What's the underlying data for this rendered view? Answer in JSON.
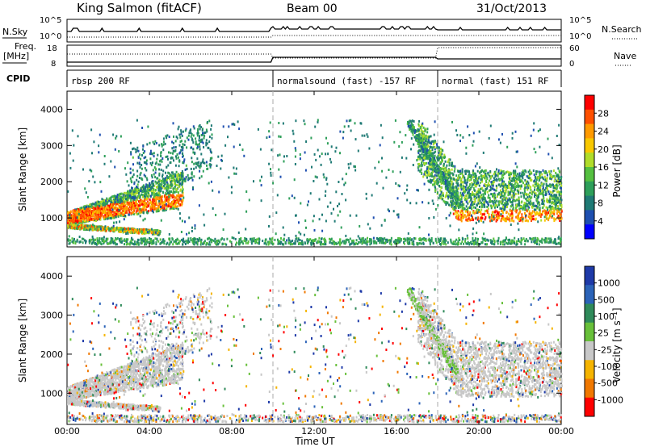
{
  "header": {
    "station": "King Salmon (fitACF)",
    "beam": "Beam 00",
    "date": "31/Oct/2013"
  },
  "top_panels": {
    "nsky_label": "N.Sky",
    "nsky_ticks": [
      "10^5",
      "10^0"
    ],
    "nsearch_label": "N.Search",
    "nsearch_ticks": [
      "10^5",
      "10^0"
    ],
    "freq_label": "Freq.",
    "freq_unit": "[MHz]",
    "freq_ticks": [
      "18",
      "8"
    ],
    "nave_label": "Nave",
    "nave_ticks": [
      "60",
      "0"
    ],
    "cpid_label": "CPID",
    "cpid_segments": [
      {
        "label": "rbsp 200 RF",
        "start": 0,
        "end": 10
      },
      {
        "label": "normalsound (fast) -157 RF",
        "start": 10,
        "end": 18
      },
      {
        "label": "normal (fast) 151 RF",
        "start": 18,
        "end": 24
      }
    ]
  },
  "chart_data": [
    {
      "type": "heatmap",
      "title": "",
      "ylabel": "Slant Range [km]",
      "xlabel": "",
      "x_range_hours": [
        0,
        24
      ],
      "ylim": [
        200,
        4500
      ],
      "y_ticks": [
        "1000",
        "2000",
        "3000",
        "4000"
      ],
      "colorbar": {
        "label": "Power [dB]",
        "ticks": [
          "28",
          "24",
          "20",
          "16",
          "12",
          "8",
          "4"
        ],
        "colors": [
          "#ff0000",
          "#ff5000",
          "#ff9a00",
          "#f8c800",
          "#b0dc2a",
          "#55c040",
          "#2e9f5a",
          "#1f7a75",
          "#1e4fb0",
          "#0000ff"
        ]
      }
    },
    {
      "type": "heatmap",
      "title": "",
      "ylabel": "Slant Range [km]",
      "xlabel": "Time UT",
      "x_range_hours": [
        0,
        24
      ],
      "ylim": [
        200,
        4500
      ],
      "y_ticks": [
        "1000",
        "2000",
        "3000",
        "4000"
      ],
      "x_ticks": [
        "00:00",
        "04:00",
        "08:00",
        "12:00",
        "16:00",
        "20:00",
        "00:00"
      ],
      "colorbar": {
        "label": "Velocity [m s⁻¹]",
        "ticks": [
          "1000",
          "500",
          "100",
          "25",
          "-25",
          "-100",
          "-500",
          "-1000"
        ],
        "colors": [
          "#1e3aa8",
          "#2b63b8",
          "#2f8a5a",
          "#68c03a",
          "#c8c8c8",
          "#f5b400",
          "#f07800",
          "#ff0000"
        ]
      }
    }
  ],
  "colors": {
    "power_blue": "#1e3fd6",
    "power_green": "#3fa84a",
    "power_orange": "#ff7a00",
    "ground_gray": "#c8c8c8"
  }
}
